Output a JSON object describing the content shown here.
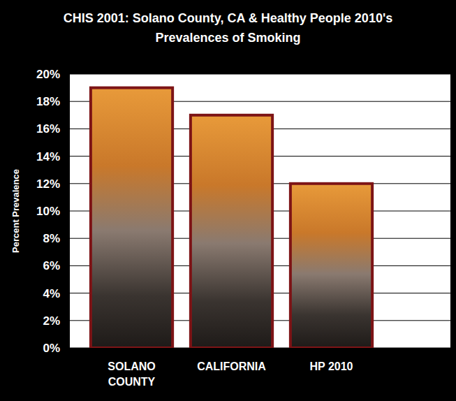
{
  "chart_data": {
    "type": "bar",
    "title": "CHIS 2001: Solano County, CA & Healthy People 2010's Prevalences of Smoking",
    "y_label": "Percent Prevalence",
    "categories": [
      "SOLANO COUNTY",
      "CALIFORNIA",
      "HP 2010"
    ],
    "values": [
      19,
      17,
      12
    ],
    "color": "#7d1416",
    "ylim": [
      0,
      20
    ],
    "yticks": [
      {
        "value": 0,
        "label": "0%"
      },
      {
        "value": 2,
        "label": "2%"
      },
      {
        "value": 4,
        "label": "4%"
      },
      {
        "value": 6,
        "label": "6%"
      },
      {
        "value": 8,
        "label": "8%"
      },
      {
        "value": 10,
        "label": "10%"
      },
      {
        "value": 12,
        "label": "12%"
      },
      {
        "value": 14,
        "label": "14%"
      },
      {
        "value": 16,
        "label": "16%"
      },
      {
        "value": 18,
        "label": "18%"
      },
      {
        "value": 20,
        "label": "20%"
      }
    ],
    "grid": true
  }
}
